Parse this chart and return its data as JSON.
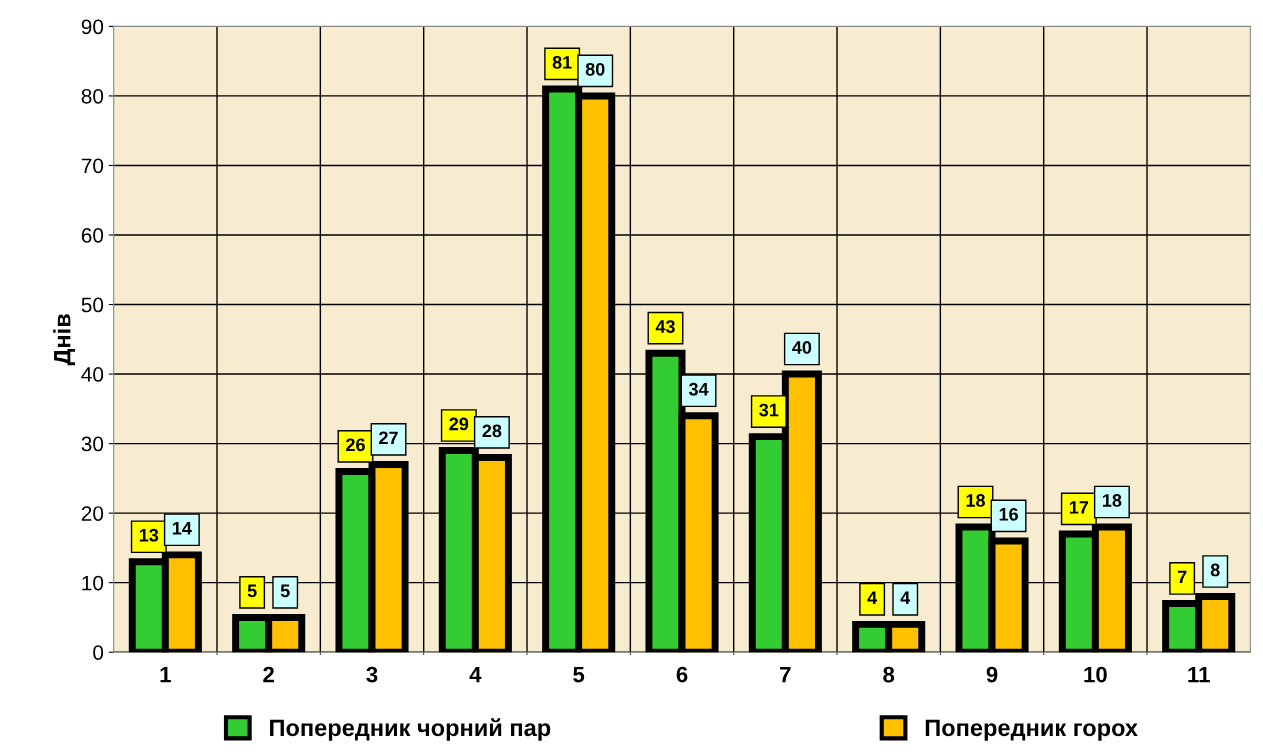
{
  "chart_data": {
    "type": "bar",
    "ylabel": "Днів",
    "categories": [
      "1",
      "2",
      "3",
      "4",
      "5",
      "6",
      "7",
      "8",
      "9",
      "10",
      "11"
    ],
    "series": [
      {
        "name": "Попередник чорний пар",
        "color": "#33cc33",
        "values": [
          13,
          5,
          26,
          29,
          81,
          43,
          31,
          4,
          18,
          17,
          7
        ]
      },
      {
        "name": "Попередник горох",
        "color": "#ffc000",
        "values": [
          14,
          5,
          27,
          28,
          80,
          34,
          40,
          4,
          16,
          18,
          8
        ]
      }
    ],
    "ylim": [
      0,
      90
    ],
    "yticks": [
      0,
      10,
      20,
      30,
      40,
      50,
      60,
      70,
      80,
      90
    ],
    "grid": true,
    "legend": "bottom",
    "data_labels": true
  }
}
